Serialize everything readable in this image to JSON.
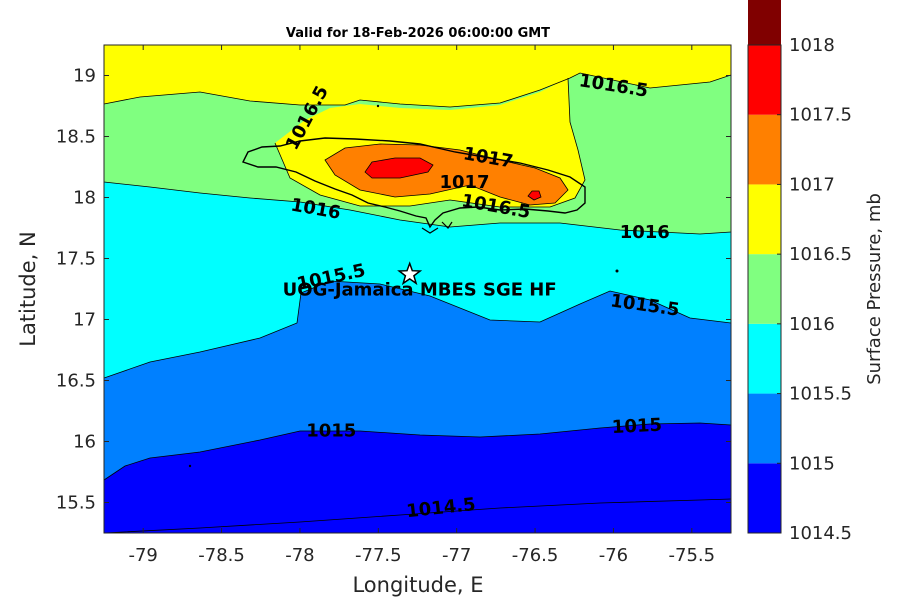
{
  "title": "Valid for 18-Feb-2026 06:00:00 GMT",
  "chart_data": {
    "type": "contour-map",
    "xlabel": "Longitude, E",
    "ylabel": "Latitude, N",
    "xlim": [
      -79.25,
      -75.25
    ],
    "ylim": [
      15.25,
      19.25
    ],
    "xticks": [
      -79,
      -78.5,
      -78,
      -77.5,
      -77,
      -76.5,
      -76,
      -75.5
    ],
    "xtick_labels": [
      "-79",
      "-78.5",
      "-78",
      "-77.5",
      "-77",
      "-76.5",
      "-76",
      "-75.5"
    ],
    "yticks": [
      15.5,
      16,
      16.5,
      17,
      17.5,
      18,
      18.5,
      19
    ],
    "ytick_labels": [
      "15.5",
      "16",
      "16.5",
      "17",
      "17.5",
      "18",
      "18.5",
      "19"
    ],
    "colorbar": {
      "label": "Surface Pressure, mb",
      "levels": [
        1014.5,
        1015,
        1015.5,
        1016,
        1016.5,
        1017,
        1017.5,
        1018
      ],
      "level_labels": [
        "1014.5",
        "1015",
        "1015.5",
        "1016",
        "1016.5",
        "1017",
        "1017.5",
        "1018"
      ],
      "colors": [
        "#0000ff",
        "#0080ff",
        "#00ffff",
        "#80ff80",
        "#ffff00",
        "#ff8000",
        "#ff0000",
        "#800000"
      ]
    },
    "contour_labels": [
      {
        "text": "1014.5",
        "lon": -77.1,
        "lat": 15.45,
        "angle": -6
      },
      {
        "text": "1015",
        "lon": -77.8,
        "lat": 16.08,
        "angle": 0
      },
      {
        "text": "1015",
        "lon": -75.85,
        "lat": 16.12,
        "angle": -3
      },
      {
        "text": "1015.5",
        "lon": -77.8,
        "lat": 17.34,
        "angle": -12
      },
      {
        "text": "1015.5",
        "lon": -75.8,
        "lat": 17.11,
        "angle": 8
      },
      {
        "text": "1016",
        "lon": -77.9,
        "lat": 17.9,
        "angle": 10
      },
      {
        "text": "1016",
        "lon": -75.8,
        "lat": 17.71,
        "angle": 0
      },
      {
        "text": "1016.5",
        "lon": -77.95,
        "lat": 18.65,
        "angle": -62
      },
      {
        "text": "1016.5",
        "lon": -76.0,
        "lat": 18.91,
        "angle": 9
      },
      {
        "text": "1016.5",
        "lon": -76.75,
        "lat": 17.92,
        "angle": 10
      },
      {
        "text": "1017",
        "lon": -76.95,
        "lat": 18.12,
        "angle": 0
      },
      {
        "text": "1017",
        "lon": -76.8,
        "lat": 18.32,
        "angle": 10
      }
    ],
    "station": {
      "name": "UOG-Jamaica MBES SGE HF",
      "lon": -77.3,
      "lat": 17.37
    }
  }
}
